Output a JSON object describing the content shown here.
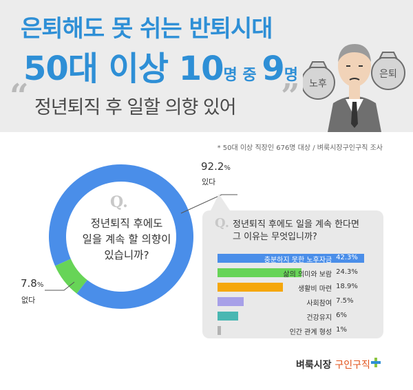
{
  "header": {
    "line1": "은퇴해도 못 쉬는 반퇴시대",
    "line2_a": "50대 이상 10",
    "line2_b": "명 중 ",
    "line2_c": "9",
    "line2_d": "명",
    "line3": "정년퇴직 후 일할 의향 있어",
    "quote_open": "“",
    "quote_close": "”",
    "bag_left": "노후",
    "bag_right": "은퇴"
  },
  "footnote": "* 50대 이상 직장인 676명 대상 / 벼룩시장구인구직 조사",
  "q_mark": "Q.",
  "colors": {
    "title_blue": "#2e8fd6",
    "donut_yes": "#4a8ee9",
    "donut_no": "#67d457"
  },
  "chart_data": [
    {
      "type": "pie",
      "title": "정년퇴직 후에도 일을 계속 할 의향이 있습니까?",
      "categories": [
        "있다",
        "없다"
      ],
      "values": [
        92.2,
        7.8
      ],
      "unit": "%",
      "labels": [
        {
          "value": "92.2",
          "unit": "%",
          "name": "있다"
        },
        {
          "value": "7.8",
          "unit": "%",
          "name": "없다"
        }
      ]
    },
    {
      "type": "bar",
      "orientation": "horizontal",
      "title": "정년퇴직 후에도 일을 계속 한다면 그 이유는 무엇입니까?",
      "categories": [
        "충분하지 못한 노후자금",
        "삶의 의미와 보람",
        "생활비 마련",
        "사회참여",
        "건강유지",
        "인간 관계 형성"
      ],
      "values": [
        42.3,
        24.3,
        18.9,
        7.5,
        6,
        1
      ],
      "value_labels": [
        "42.3%",
        "24.3%",
        "18.9%",
        "7.5%",
        "6%",
        "1%"
      ],
      "colors": [
        "#4a8ee9",
        "#67d457",
        "#f5a70c",
        "#a7a0e8",
        "#4ab7b2",
        "#b3b3b3"
      ]
    }
  ],
  "donut_question_lines": [
    "정년퇴직 후에도",
    "일을 계속 할 의향이",
    "있습니까?"
  ],
  "panel_question_lines": [
    "정년퇴직 후에도 일을 계속 한다면",
    "그 이유는 무엇입니까?"
  ],
  "brand": {
    "name": "벼룩시장",
    "accent": "구인구직"
  }
}
